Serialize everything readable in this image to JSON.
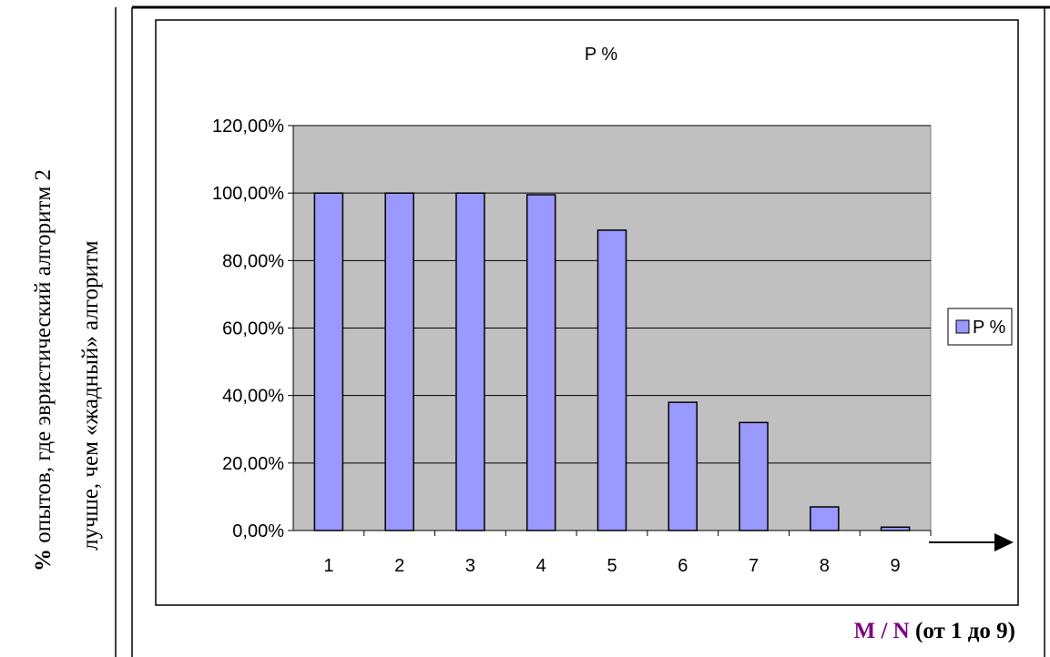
{
  "axis_caption_y": {
    "percent_sign": "%",
    "line1_rest": "опытов, где эвристический алгоритм 2",
    "line2": "лучше, чем «жадный» алгоритм"
  },
  "axis_caption_x": {
    "mn": "M / N",
    "range": "(от 1 до 9)"
  },
  "colors": {
    "bar_fill": "#9999ff",
    "plot_bg": "#c0c0c0",
    "frame": "#000000"
  },
  "chart_data": {
    "type": "bar",
    "title": "P %",
    "categories": [
      "1",
      "2",
      "3",
      "4",
      "5",
      "6",
      "7",
      "8",
      "9"
    ],
    "series": [
      {
        "name": "P %",
        "values": [
          100,
          100,
          100,
          99.5,
          89,
          38,
          32,
          7,
          1
        ]
      }
    ],
    "ylim": [
      0,
      120
    ],
    "yticks": [
      "0,00%",
      "20,00%",
      "40,00%",
      "60,00%",
      "80,00%",
      "100,00%",
      "120,00%"
    ],
    "ytick_values": [
      0,
      20,
      40,
      60,
      80,
      100,
      120
    ],
    "grid": true,
    "legend_position": "right"
  }
}
